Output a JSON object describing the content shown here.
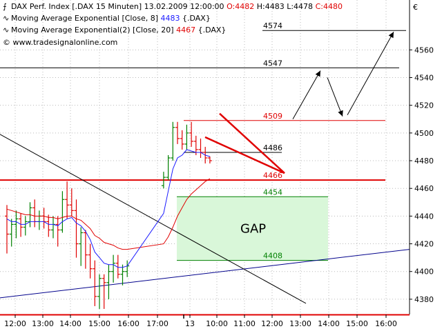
{
  "header": {
    "title": "DAX Perf. Index [.DAX  15 Minuten]",
    "date": "13.02.2009 12:00:00",
    "ohlc": {
      "o": "O:4482",
      "h": "H:4483",
      "l": "L:4478",
      "c": "C:4480"
    },
    "ema1_label": "Moving Average Exponential [Close, 8]",
    "ema1_value": "4483",
    "ema1_suffix": "{.DAX}",
    "ema2_label": "Moving Average Exponential(2) [Close, 20]",
    "ema2_value": "4467",
    "ema2_suffix": "{.DAX}",
    "source": "www.tradesignalonline.com",
    "currency": "€"
  },
  "colors": {
    "up": "#008000",
    "down": "#e00000",
    "ema1": "#1a1aff",
    "ema2": "#e00000",
    "gap": "#d9f7d9",
    "trend": "#00008b"
  },
  "chart_data": {
    "type": "ohlc",
    "ylim": [
      4369,
      4596
    ],
    "yticks": [
      4380,
      4400,
      4420,
      4440,
      4460,
      4480,
      4500,
      4520,
      4540,
      4560
    ],
    "xticks": [
      "12:00",
      "13:00",
      "14:00",
      "15:00",
      "16:00",
      "17:00",
      "13",
      "10:00",
      "11:00",
      "12:00",
      "13:00",
      "14:00",
      "15:00",
      "16:00"
    ],
    "bars": [
      {
        "o": 4440,
        "h": 4448,
        "l": 4413,
        "c": 4427
      },
      {
        "o": 4427,
        "h": 4438,
        "l": 4418,
        "c": 4434
      },
      {
        "o": 4434,
        "h": 4444,
        "l": 4424,
        "c": 4438
      },
      {
        "o": 4438,
        "h": 4442,
        "l": 4425,
        "c": 4432
      },
      {
        "o": 4432,
        "h": 4440,
        "l": 4426,
        "c": 4436
      },
      {
        "o": 4436,
        "h": 4450,
        "l": 4432,
        "c": 4446
      },
      {
        "o": 4446,
        "h": 4452,
        "l": 4432,
        "c": 4436
      },
      {
        "o": 4436,
        "h": 4444,
        "l": 4430,
        "c": 4440
      },
      {
        "o": 4440,
        "h": 4446,
        "l": 4431,
        "c": 4436
      },
      {
        "o": 4436,
        "h": 4441,
        "l": 4425,
        "c": 4430
      },
      {
        "o": 4430,
        "h": 4440,
        "l": 4424,
        "c": 4434
      },
      {
        "o": 4434,
        "h": 4440,
        "l": 4418,
        "c": 4430
      },
      {
        "o": 4430,
        "h": 4458,
        "l": 4428,
        "c": 4452
      },
      {
        "o": 4452,
        "h": 4465,
        "l": 4438,
        "c": 4448
      },
      {
        "o": 4448,
        "h": 4460,
        "l": 4440,
        "c": 4444
      },
      {
        "o": 4444,
        "h": 4452,
        "l": 4410,
        "c": 4420
      },
      {
        "o": 4420,
        "h": 4432,
        "l": 4404,
        "c": 4428
      },
      {
        "o": 4428,
        "h": 4430,
        "l": 4402,
        "c": 4412
      },
      {
        "o": 4412,
        "h": 4420,
        "l": 4395,
        "c": 4402
      },
      {
        "o": 4402,
        "h": 4408,
        "l": 4375,
        "c": 4382
      },
      {
        "o": 4382,
        "h": 4398,
        "l": 4373,
        "c": 4395
      },
      {
        "o": 4395,
        "h": 4398,
        "l": 4373,
        "c": 4392
      },
      {
        "o": 4392,
        "h": 4405,
        "l": 4380,
        "c": 4400
      },
      {
        "o": 4400,
        "h": 4412,
        "l": 4392,
        "c": 4406
      },
      {
        "o": 4406,
        "h": 4412,
        "l": 4395,
        "c": 4398
      },
      {
        "o": 4398,
        "h": 4405,
        "l": 4390,
        "c": 4400
      },
      {
        "o": 4400,
        "h": 4408,
        "l": 4396,
        "c": 4404
      },
      {
        "o": 4462,
        "h": 4472,
        "l": 4460,
        "c": 4468
      },
      {
        "o": 4468,
        "h": 4484,
        "l": 4466,
        "c": 4482
      },
      {
        "o": 4482,
        "h": 4508,
        "l": 4480,
        "c": 4504
      },
      {
        "o": 4504,
        "h": 4508,
        "l": 4492,
        "c": 4496
      },
      {
        "o": 4496,
        "h": 4502,
        "l": 4488,
        "c": 4492
      },
      {
        "o": 4492,
        "h": 4506,
        "l": 4488,
        "c": 4500
      },
      {
        "o": 4500,
        "h": 4508,
        "l": 4490,
        "c": 4494
      },
      {
        "o": 4494,
        "h": 4498,
        "l": 4484,
        "c": 4488
      },
      {
        "o": 4488,
        "h": 4496,
        "l": 4482,
        "c": 4486
      },
      {
        "o": 4486,
        "h": 4490,
        "l": 4478,
        "c": 4482
      },
      {
        "o": 4482,
        "h": 4483,
        "l": 4478,
        "c": 4480
      }
    ],
    "ema8": [
      4438,
      4436,
      4436,
      4434,
      4434,
      4436,
      4436,
      4436,
      4436,
      4434,
      4434,
      4433,
      4436,
      4438,
      4439,
      4435,
      4433,
      4429,
      4423,
      4414,
      4410,
      4406,
      4405,
      4405,
      4403,
      4403,
      4404,
      4442,
      4458,
      4474,
      4482,
      4484,
      4488,
      4487,
      4486,
      4486,
      4484,
      4483
    ],
    "ema20": [
      4445,
      4444,
      4443,
      4442,
      4441,
      4441,
      4440,
      4440,
      4440,
      4439,
      4439,
      4438,
      4439,
      4440,
      4440,
      4438,
      4437,
      4434,
      4431,
      4426,
      4424,
      4421,
      4420,
      4419,
      4417,
      4416,
      4416,
      4420,
      4425,
      4432,
      4440,
      4446,
      4452,
      4456,
      4459,
      4462,
      4465,
      4467
    ],
    "levels": [
      {
        "label": "4574",
        "value": 4574,
        "color": "#000000"
      },
      {
        "label": "4547",
        "value": 4547,
        "color": "#000000"
      },
      {
        "label": "4509",
        "value": 4509,
        "color": "#e00000"
      },
      {
        "label": "4486",
        "value": 4486,
        "color": "#000000"
      },
      {
        "label": "4466",
        "value": 4466,
        "color": "#e00000"
      },
      {
        "label": "4454",
        "value": 4454,
        "color": "#008000"
      },
      {
        "label": "4408",
        "value": 4408,
        "color": "#008000"
      }
    ],
    "gap_label": "GAP",
    "gap_range": [
      4408,
      4454
    ],
    "annotations": [
      "red wedge pattern",
      "black projection arrows up to 4547 and 4574"
    ]
  }
}
